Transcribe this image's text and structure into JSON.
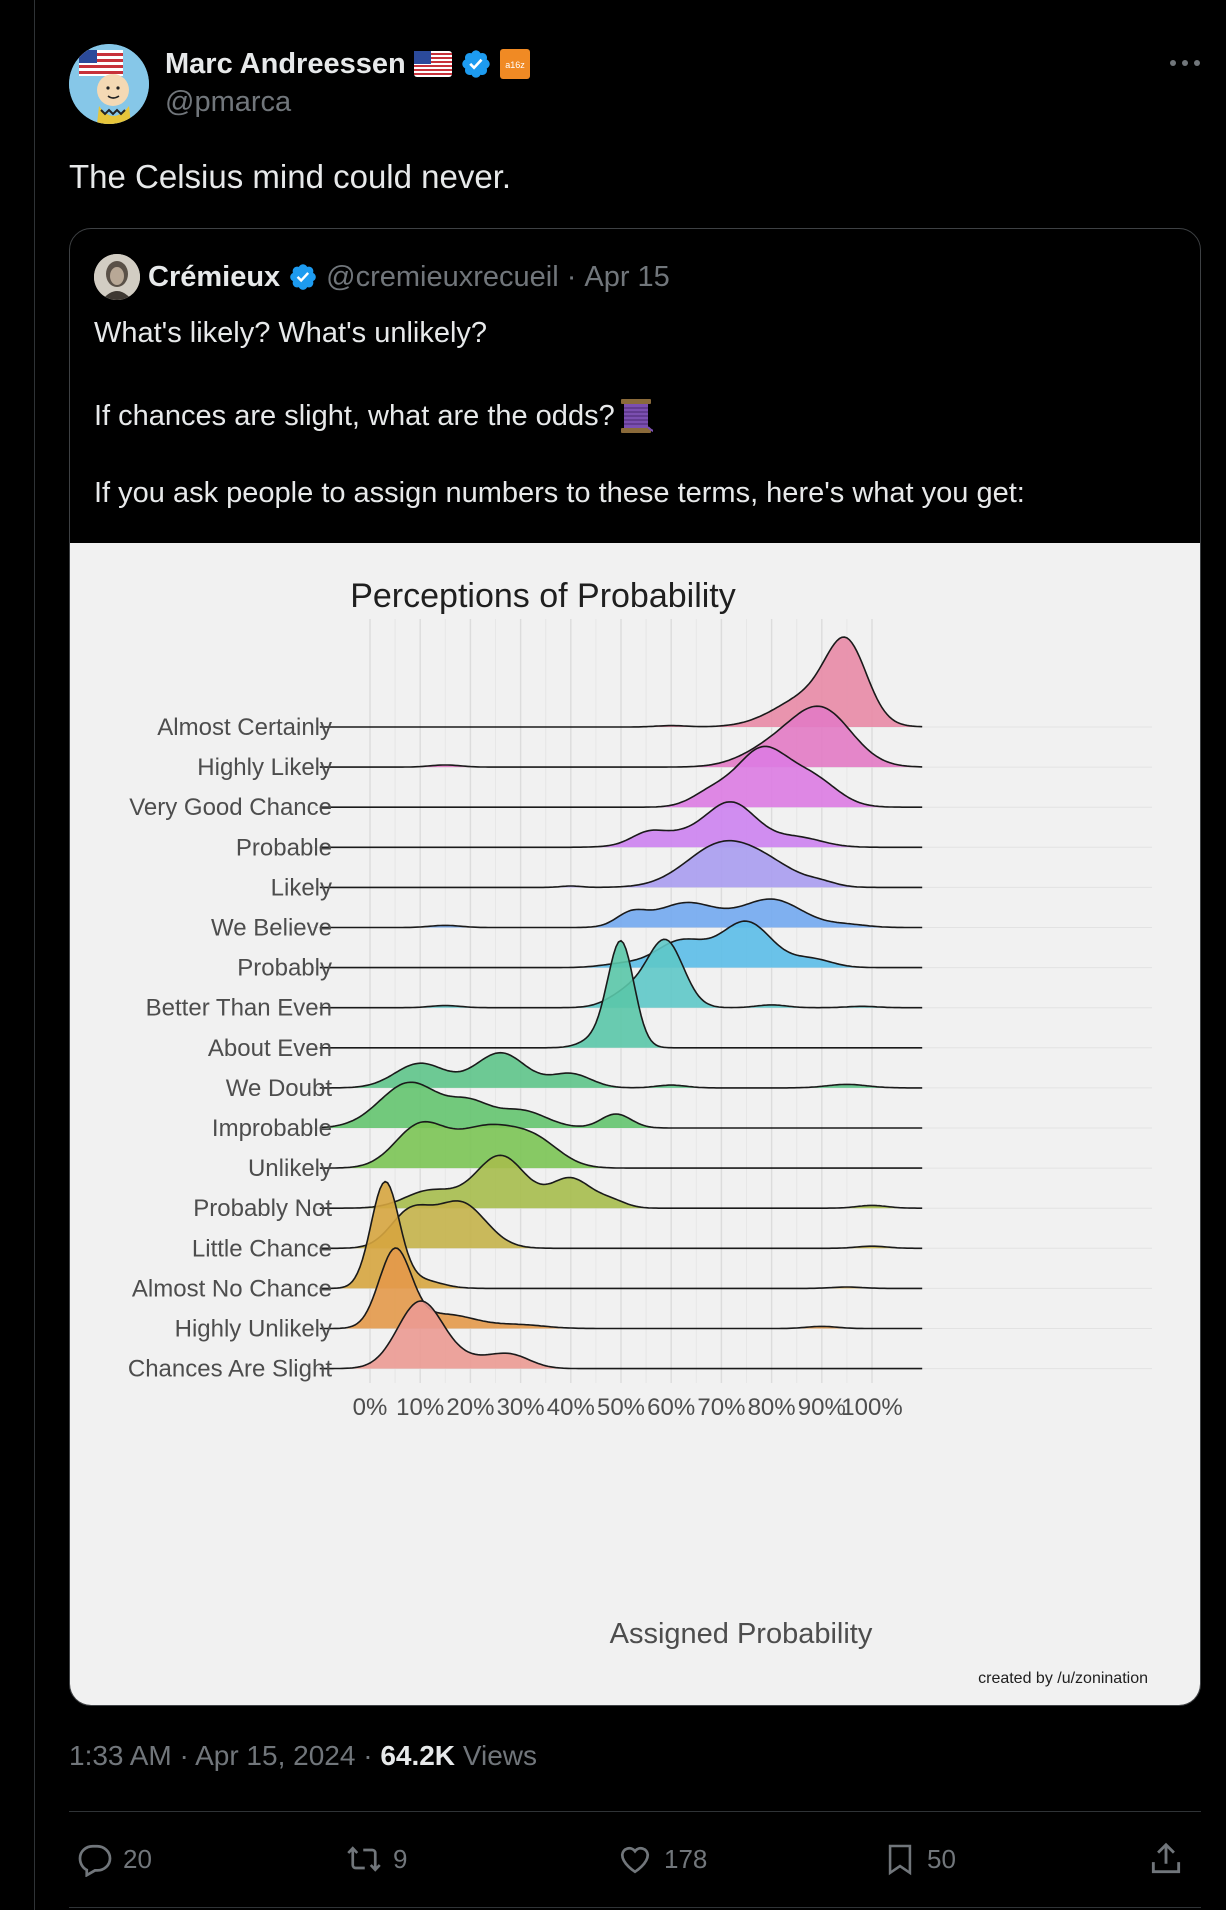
{
  "post": {
    "author_name": "Marc Andreessen",
    "author_handle": "@pmarca",
    "badge_text": "a16z",
    "text": "The Celsius mind could never.",
    "timestamp": "1:33 AM · Apr 15, 2024",
    "views_count": "64.2K",
    "views_label": "Views"
  },
  "quote": {
    "author_name": "Crémieux",
    "author_handle": "@cremieuxrecueil",
    "date": "Apr 15",
    "line1": "What's likely? What's unlikely?",
    "line2": "If chances are slight, what are the odds?",
    "line3": "If you ask people to assign numbers to these terms, here's what you get:"
  },
  "actions": {
    "replies": "20",
    "reposts": "9",
    "likes": "178",
    "bookmarks": "50"
  },
  "colors": {
    "background": "#000000",
    "text": "#e7e9ea",
    "muted": "#71767b",
    "verified": "#1d9bf0"
  },
  "chart_data": {
    "type": "ridgeline",
    "title": "Perceptions of Probability",
    "xlabel": "Assigned Probability",
    "credit": "created by /u/zonination",
    "xlim": [
      -10,
      110
    ],
    "x_ticks": [
      "0%",
      "10%",
      "20%",
      "30%",
      "40%",
      "50%",
      "60%",
      "70%",
      "80%",
      "90%",
      "100%"
    ],
    "categories": [
      {
        "label": "Almost Certainly",
        "color": "#e88aa6",
        "peaks": [
          [
            95,
            1.0,
            4
          ],
          [
            88,
            0.45,
            7
          ],
          [
            60,
            0.02,
            3
          ]
        ]
      },
      {
        "label": "Highly Likely",
        "color": "#e27ac4",
        "peaks": [
          [
            90,
            0.8,
            6
          ],
          [
            80,
            0.25,
            6
          ],
          [
            15,
            0.03,
            3
          ]
        ]
      },
      {
        "label": "Very Good Chance",
        "color": "#dc7be2",
        "peaks": [
          [
            78,
            0.8,
            5
          ],
          [
            88,
            0.4,
            5
          ],
          [
            68,
            0.2,
            4
          ]
        ]
      },
      {
        "label": "Probable",
        "color": "#cc82ef",
        "peaks": [
          [
            72,
            0.62,
            5
          ],
          [
            60,
            0.18,
            6
          ],
          [
            55,
            0.1,
            3
          ],
          [
            85,
            0.14,
            5
          ]
        ]
      },
      {
        "label": "Likely",
        "color": "#a89cf0",
        "peaks": [
          [
            70,
            0.6,
            7
          ],
          [
            80,
            0.22,
            6
          ],
          [
            40,
            0.02,
            2
          ],
          [
            90,
            0.05,
            3
          ]
        ]
      },
      {
        "label": "We Believe",
        "color": "#72a8ef",
        "peaks": [
          [
            80,
            0.4,
            6
          ],
          [
            63,
            0.35,
            6
          ],
          [
            52,
            0.18,
            3
          ],
          [
            15,
            0.03,
            3
          ],
          [
            95,
            0.04,
            4
          ]
        ]
      },
      {
        "label": "Probably",
        "color": "#5bbce8",
        "peaks": [
          [
            75,
            0.65,
            5
          ],
          [
            62,
            0.38,
            5
          ],
          [
            88,
            0.12,
            4
          ],
          [
            50,
            0.05,
            4
          ]
        ]
      },
      {
        "label": "Better Than Even",
        "color": "#5ec8c8",
        "peaks": [
          [
            59,
            0.92,
            3.5
          ],
          [
            52,
            0.25,
            4
          ],
          [
            80,
            0.04,
            3
          ],
          [
            15,
            0.03,
            3
          ],
          [
            98,
            0.02,
            3
          ]
        ]
      },
      {
        "label": "About Even",
        "color": "#5ac6a9",
        "peaks": [
          [
            50,
            1.5,
            2.6
          ],
          [
            45,
            0.12,
            3
          ]
        ]
      },
      {
        "label": "We Doubt",
        "color": "#5ec48a",
        "peaks": [
          [
            26,
            0.5,
            5
          ],
          [
            10,
            0.35,
            5
          ],
          [
            40,
            0.2,
            4
          ],
          [
            60,
            0.04,
            3
          ],
          [
            95,
            0.05,
            4
          ]
        ]
      },
      {
        "label": "Improbable",
        "color": "#64c46f",
        "peaks": [
          [
            8,
            0.65,
            6
          ],
          [
            20,
            0.3,
            4
          ],
          [
            30,
            0.25,
            5
          ],
          [
            49,
            0.2,
            3
          ]
        ]
      },
      {
        "label": "Unlikely",
        "color": "#7bc454",
        "peaks": [
          [
            10,
            0.6,
            5
          ],
          [
            23,
            0.55,
            6
          ],
          [
            33,
            0.35,
            5
          ]
        ]
      },
      {
        "label": "Probably Not",
        "color": "#a6bd4c",
        "peaks": [
          [
            26,
            0.75,
            5
          ],
          [
            40,
            0.42,
            4
          ],
          [
            12,
            0.25,
            5
          ],
          [
            48,
            0.1,
            3
          ],
          [
            100,
            0.04,
            3
          ]
        ]
      },
      {
        "label": "Little Chance",
        "color": "#c4b24a",
        "peaks": [
          [
            18,
            0.65,
            5
          ],
          [
            8,
            0.5,
            4
          ],
          [
            100,
            0.03,
            3
          ]
        ]
      },
      {
        "label": "Almost No Chance",
        "color": "#d6a53f",
        "peaks": [
          [
            3,
            1.5,
            2.8
          ],
          [
            10,
            0.12,
            4
          ],
          [
            95,
            0.02,
            3
          ]
        ]
      },
      {
        "label": "Highly Unlikely",
        "color": "#e3994a",
        "peaks": [
          [
            5,
            1.1,
            3.2
          ],
          [
            15,
            0.2,
            6
          ],
          [
            30,
            0.05,
            5
          ],
          [
            90,
            0.03,
            3
          ]
        ]
      },
      {
        "label": "Chances Are Slight",
        "color": "#eb9a92",
        "peaks": [
          [
            10,
            0.95,
            4.5
          ],
          [
            28,
            0.18,
            4
          ],
          [
            20,
            0.12,
            5
          ]
        ]
      }
    ]
  }
}
